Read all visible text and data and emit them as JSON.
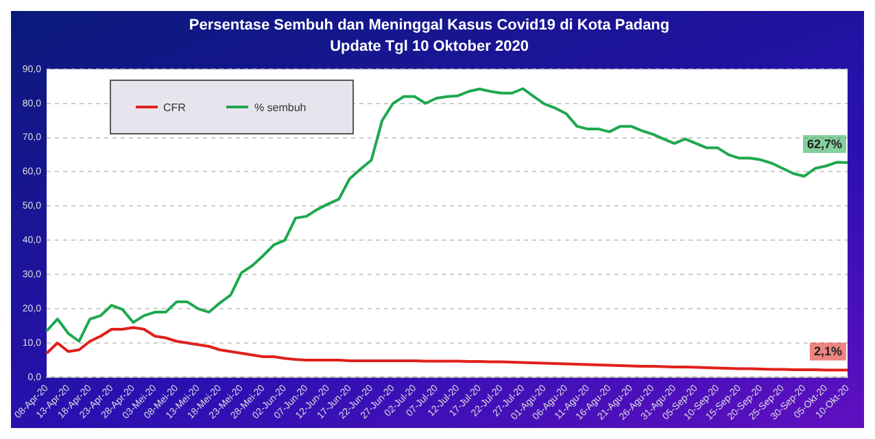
{
  "chart_data": {
    "type": "line",
    "title": "Persentase Sembuh dan Meninggal Kasus Covid19 di Kota Padang",
    "subtitle": "Update Tgl 10 Oktober 2020",
    "categories": [
      "08-Apr-20",
      null,
      "13-Apr-20",
      null,
      "18-Apr-20",
      null,
      "23-Apr-20",
      null,
      "28-Apr-20",
      null,
      "03-Mei-20",
      null,
      "08-Mei-20",
      null,
      "13-Mei-20",
      null,
      "18-Mei-20",
      null,
      "23-Mei-20",
      null,
      "28-Mei-20",
      null,
      "02-Jun-20",
      null,
      "07-Jun-20",
      null,
      "12-Jun-20",
      null,
      "17-Jun-20",
      null,
      "22-Jun-20",
      null,
      "27-Jun-20",
      null,
      "02-Jul-20",
      null,
      "07-Jul-20",
      null,
      "12-Jul-20",
      null,
      "17-Jul-20",
      null,
      "22-Jul-20",
      null,
      "27-Jul-20",
      null,
      "01-Agu-20",
      null,
      "06-Agu-20",
      null,
      "11-Agu-20",
      null,
      "16-Agu-20",
      null,
      "21-Agu-20",
      null,
      "26-Agu-20",
      null,
      "31-Agu-20",
      null,
      "05-Sep-20",
      null,
      "10-Sep-20",
      null,
      "15-Sep-20",
      null,
      "20-Sep-20",
      null,
      "25-Sep-20",
      null,
      "30-Sep-20",
      null,
      "05-Okt-20",
      null,
      "10-Okt-20"
    ],
    "series": [
      {
        "name": "CFR",
        "color": "#e0201c",
        "values": [
          7,
          10,
          7.5,
          8,
          10.5,
          12,
          14,
          14,
          14.5,
          14,
          12,
          11.5,
          10.5,
          10,
          9.5,
          9,
          8,
          7.5,
          7,
          6.5,
          6,
          6,
          5.5,
          5.2,
          5,
          5,
          5,
          5,
          4.8,
          4.8,
          4.8,
          4.8,
          4.8,
          4.8,
          4.8,
          4.7,
          4.7,
          4.7,
          4.7,
          4.6,
          4.6,
          4.5,
          4.5,
          4.4,
          4.3,
          4.2,
          4.1,
          4,
          3.9,
          3.8,
          3.7,
          3.6,
          3.5,
          3.4,
          3.3,
          3.2,
          3.2,
          3.1,
          3,
          3,
          2.9,
          2.8,
          2.7,
          2.6,
          2.5,
          2.5,
          2.4,
          2.3,
          2.3,
          2.2,
          2.2,
          2.2,
          2.1,
          2.1,
          2.1
        ],
        "value_labels": [
          null,
          null,
          null,
          null,
          null,
          null,
          null,
          null,
          null,
          null,
          null,
          null,
          null,
          null,
          null,
          null,
          null,
          null,
          null,
          null,
          null,
          null,
          null,
          null,
          null,
          null,
          null,
          null,
          null,
          null,
          null,
          null,
          null,
          null,
          null,
          null,
          null,
          null,
          null,
          null,
          null,
          null,
          null,
          null,
          null,
          null,
          null,
          null,
          null,
          null,
          null,
          null,
          null,
          null,
          null,
          null,
          null,
          null,
          null,
          null,
          null,
          null,
          null,
          null,
          null,
          null,
          null,
          null,
          null,
          null,
          null,
          null,
          null,
          null,
          "2,1%"
        ]
      },
      {
        "name": "% sembuh",
        "color": "#1fa84f",
        "values": [
          13.5,
          17,
          12.8,
          10.5,
          17,
          18,
          21,
          19.8,
          16,
          18,
          19,
          19,
          22,
          22,
          20,
          19,
          21.7,
          24,
          30.5,
          32.6,
          35.5,
          38.7,
          40,
          46.5,
          47,
          49,
          50.6,
          52,
          58,
          60.8,
          63.4,
          75,
          80,
          82,
          82,
          80,
          81.5,
          82,
          82.2,
          83.5,
          84.2,
          83.5,
          83,
          83,
          84.3,
          82,
          79.8,
          78.6,
          77,
          73.3,
          72.5,
          72.5,
          71.7,
          73.3,
          73.3,
          72,
          71,
          69.6,
          68.3,
          69.6,
          68.3,
          67,
          67,
          65,
          64,
          64,
          63.5,
          62.5,
          61,
          59.5,
          58.7,
          61,
          61.7,
          62.8,
          62.7
        ],
        "value_labels": [
          null,
          null,
          null,
          null,
          null,
          null,
          null,
          null,
          null,
          null,
          null,
          null,
          null,
          null,
          null,
          null,
          null,
          null,
          null,
          null,
          null,
          null,
          null,
          null,
          null,
          null,
          null,
          null,
          null,
          null,
          null,
          null,
          null,
          null,
          null,
          null,
          null,
          null,
          null,
          null,
          null,
          null,
          null,
          null,
          null,
          null,
          null,
          null,
          null,
          null,
          null,
          null,
          null,
          null,
          null,
          null,
          null,
          null,
          null,
          null,
          null,
          null,
          null,
          null,
          null,
          null,
          null,
          null,
          null,
          null,
          null,
          null,
          null,
          null,
          "62,7%"
        ]
      }
    ],
    "ylim": [
      0,
      90
    ],
    "yticks": [
      {
        "value": 0,
        "label": "0,0"
      },
      {
        "value": 10,
        "label": "10,0"
      },
      {
        "value": 20,
        "label": "20,0"
      },
      {
        "value": 30,
        "label": "30,0"
      },
      {
        "value": 40,
        "label": "40,0"
      },
      {
        "value": 50,
        "label": "50,0"
      },
      {
        "value": 60,
        "label": "60,0"
      },
      {
        "value": 70,
        "label": "70,0"
      },
      {
        "value": 80,
        "label": "80,0"
      },
      {
        "value": 90,
        "label": "90,0"
      }
    ],
    "grid": "y",
    "legend": "top left",
    "marker": "none",
    "line_style": "solid"
  }
}
